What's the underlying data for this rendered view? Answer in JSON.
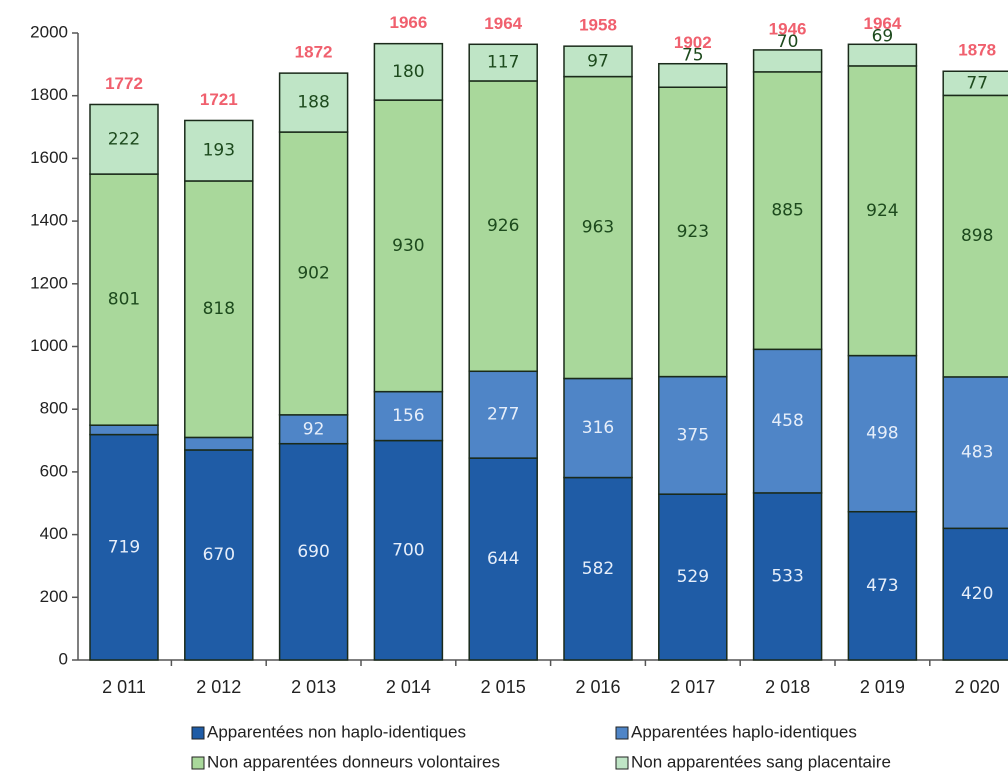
{
  "chart_data": {
    "type": "stacked_bar",
    "categories": [
      "2 011",
      "2 012",
      "2 013",
      "2 014",
      "2 015",
      "2 016",
      "2 017",
      "2 018",
      "2 019",
      "2 020"
    ],
    "series": [
      {
        "name": "Apparentées non haplo-identiques",
        "color": "#1f5ca6",
        "values": [
          719,
          670,
          690,
          700,
          644,
          582,
          529,
          533,
          473,
          420
        ]
      },
      {
        "name": "Apparentées haplo-identiques",
        "color": "#4f85c7",
        "values": [
          30,
          40,
          92,
          156,
          277,
          316,
          375,
          458,
          498,
          483
        ]
      },
      {
        "name": "Non apparentées donneurs volontaires",
        "color": "#a9d89b",
        "values": [
          801,
          818,
          902,
          930,
          926,
          963,
          923,
          885,
          924,
          898
        ]
      },
      {
        "name": "Non apparentées sang placentaire",
        "color": "#bfe5c6",
        "values": [
          222,
          193,
          188,
          180,
          117,
          97,
          75,
          70,
          69,
          77
        ]
      }
    ],
    "totals": [
      1772,
      1721,
      1872,
      1966,
      1964,
      1958,
      1902,
      1946,
      1964,
      1878
    ],
    "ylim": [
      0,
      2000
    ],
    "yticks": [
      0,
      200,
      400,
      600,
      800,
      1000,
      1200,
      1400,
      1600,
      1800,
      2000
    ],
    "legend": "bottom"
  }
}
